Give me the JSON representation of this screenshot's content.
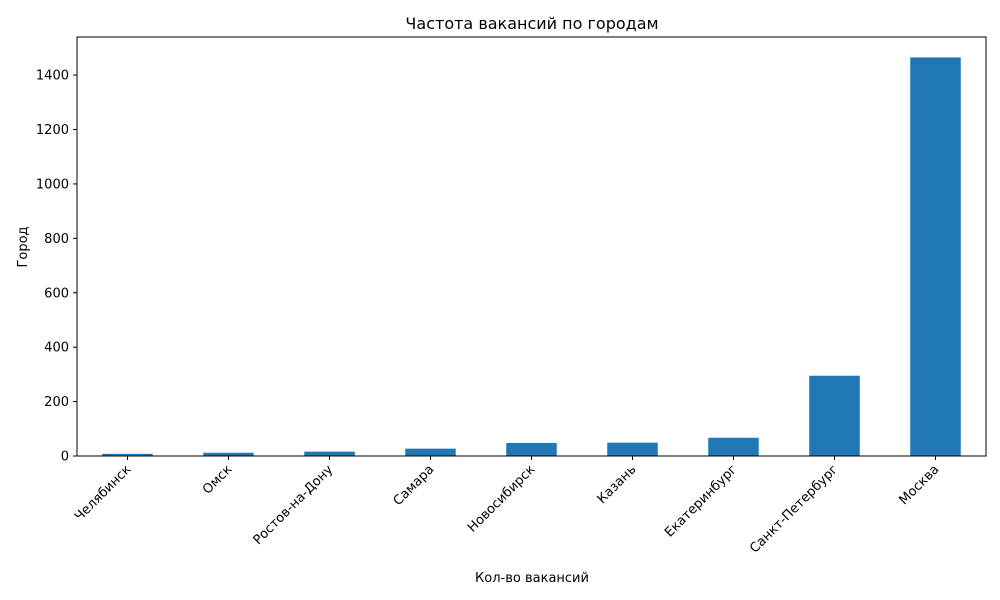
{
  "chart_data": {
    "type": "bar",
    "title": "Частота вакансий по городам",
    "xlabel": "Кол-во вакансий",
    "ylabel": "Город",
    "categories": [
      "Челябинск",
      "Омск",
      "Ростов-на-Дону",
      "Самара",
      "Новосибирск",
      "Казань",
      "Екатеринбург",
      "Санкт-Петербург",
      "Москва"
    ],
    "values": [
      8,
      12,
      16,
      27,
      48,
      49,
      67,
      295,
      1465
    ],
    "ylim": [
      0,
      1540
    ],
    "yticks": [
      0,
      200,
      400,
      600,
      800,
      1000,
      1200,
      1400
    ],
    "grid": false,
    "bar_color": "#1f77b4"
  }
}
